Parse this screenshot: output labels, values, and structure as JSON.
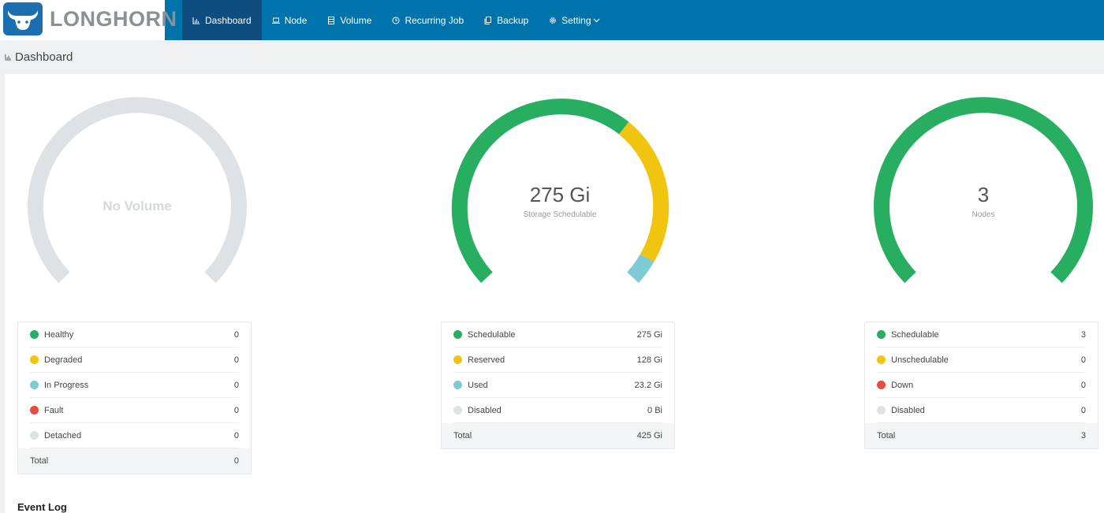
{
  "app": {
    "name": "LONGHORN"
  },
  "nav": [
    {
      "label": "Dashboard",
      "icon": "bar-chart-icon",
      "active": true
    },
    {
      "label": "Node",
      "icon": "laptop-icon"
    },
    {
      "label": "Volume",
      "icon": "database-icon"
    },
    {
      "label": "Recurring Job",
      "icon": "clock-icon"
    },
    {
      "label": "Backup",
      "icon": "copy-icon"
    },
    {
      "label": "Setting",
      "icon": "gear-icon",
      "has_dropdown": true
    }
  ],
  "page": {
    "title": "Dashboard"
  },
  "colors": {
    "healthy": "#27ae60",
    "warning": "#f1c40f",
    "info": "#7ecbd6",
    "danger": "#e74c3c",
    "disabled": "#dfe2e5",
    "header": "#0074aa"
  },
  "volumes": {
    "center_text": "No Volume",
    "rows": [
      {
        "label": "Healthy",
        "value": "0",
        "color": "#27ae60"
      },
      {
        "label": "Degraded",
        "value": "0",
        "color": "#f1c40f"
      },
      {
        "label": "In Progress",
        "value": "0",
        "color": "#7ecbd6"
      },
      {
        "label": "Fault",
        "value": "0",
        "color": "#e74c3c"
      },
      {
        "label": "Detached",
        "value": "0",
        "color": "#dfe2e5"
      }
    ],
    "total_label": "Total",
    "total_value": "0"
  },
  "storage": {
    "center_value": "275 Gi",
    "center_label": "Storage Schedulable",
    "rows": [
      {
        "label": "Schedulable",
        "value": "275 Gi",
        "color": "#27ae60"
      },
      {
        "label": "Reserved",
        "value": "128 Gi",
        "color": "#f1c40f"
      },
      {
        "label": "Used",
        "value": "23.2 Gi",
        "color": "#7ecbd6"
      },
      {
        "label": "Disabled",
        "value": "0 Bi",
        "color": "#dfe2e5"
      }
    ],
    "total_label": "Total",
    "total_value": "425 Gi"
  },
  "nodes": {
    "center_value": "3",
    "center_label": "Nodes",
    "rows": [
      {
        "label": "Schedulable",
        "value": "3",
        "color": "#27ae60"
      },
      {
        "label": "Unschedulable",
        "value": "0",
        "color": "#f1c40f"
      },
      {
        "label": "Down",
        "value": "0",
        "color": "#e74c3c"
      },
      {
        "label": "Disabled",
        "value": "0",
        "color": "#dfe2e5"
      }
    ],
    "total_label": "Total",
    "total_value": "3"
  },
  "event_log": {
    "title": "Event Log"
  }
}
